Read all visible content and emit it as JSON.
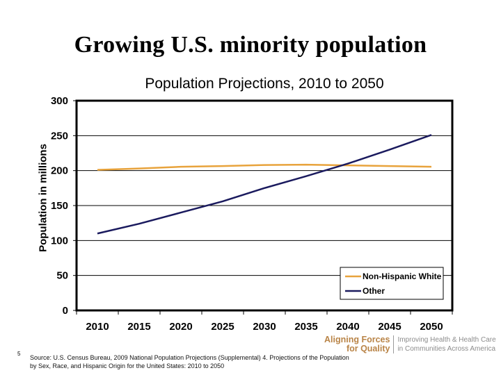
{
  "slide": {
    "title": "Growing U.S. minority population",
    "slide_number": "5",
    "source_line1": "Source: U.S. Census Bureau, 2009 National Population Projections (Supplemental) 4.  Projections of the Population",
    "source_line2": "by Sex, Race, and Hispanic Origin for the United States: 2010 to 2050",
    "logo": {
      "name_line1": "Aligning Forces",
      "name_line2": "for Quality",
      "tagline_line1": "Improving Health & Health Care",
      "tagline_line2": "in Communities Across America",
      "color": "#b98447"
    }
  },
  "chart_data": {
    "type": "line",
    "title": "Population Projections, 2010 to 2050",
    "xlabel": "",
    "ylabel": "Population in millions",
    "categories": [
      "2010",
      "2015",
      "2020",
      "2025",
      "2030",
      "2035",
      "2040",
      "2045",
      "2050"
    ],
    "ylim": [
      0,
      300
    ],
    "yticks": [
      0,
      50,
      100,
      150,
      200,
      250,
      300
    ],
    "grid": true,
    "legend_position": "bottom-right",
    "series": [
      {
        "name": "Non-Hispanic White",
        "color": "#e8a33c",
        "values": [
          201,
          203,
          205.5,
          206.5,
          208,
          208.5,
          207.5,
          206.5,
          205.5
        ]
      },
      {
        "name": "Other",
        "color": "#1a1a5e",
        "values": [
          110,
          124,
          140,
          156,
          175,
          192,
          210,
          230,
          251
        ]
      }
    ]
  }
}
